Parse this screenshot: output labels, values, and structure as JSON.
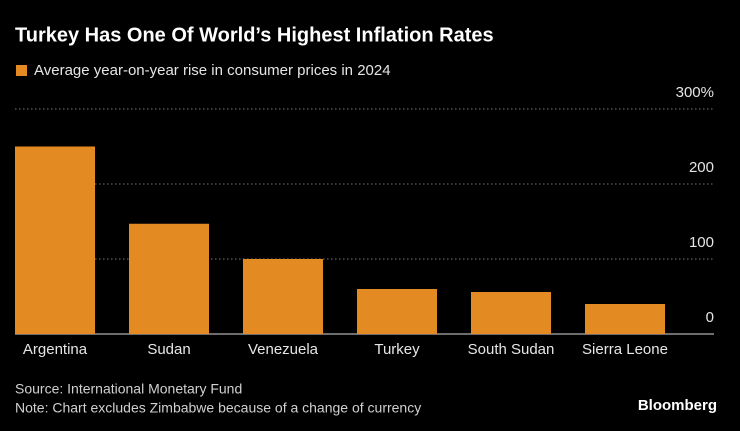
{
  "chart_data": {
    "type": "bar",
    "title": "Turkey Has One Of World’s Highest Inflation Rates",
    "categories": [
      "Argentina",
      "Sudan",
      "Venezuela",
      "Turkey",
      "South Sudan",
      "Sierra Leone"
    ],
    "series": [
      {
        "name": "Average year-on-year rise in consumer prices in 2024",
        "color": "#e38a23",
        "values": [
          250,
          147,
          100,
          60,
          56,
          40
        ]
      }
    ],
    "ylim": [
      0,
      300
    ],
    "yticks": [
      0,
      100,
      200,
      {
        "value": 300,
        "label": "300%"
      }
    ],
    "grid": true,
    "source": "Source: International Monetary Fund",
    "note": "Note: Chart excludes Zimbabwe because of a change of currency",
    "brand": "Bloomberg"
  }
}
